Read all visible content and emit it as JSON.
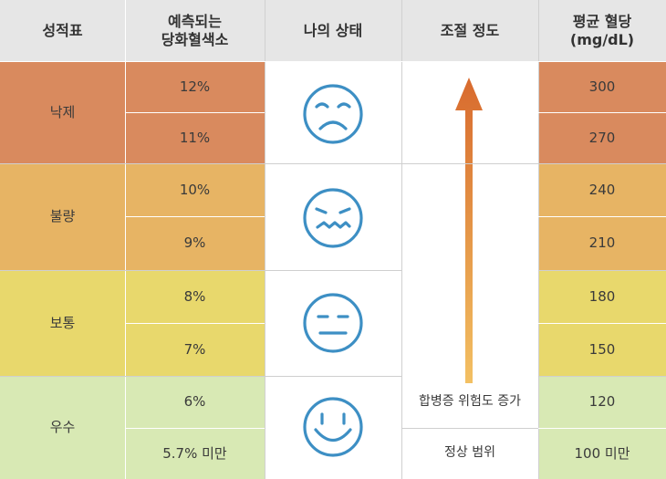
{
  "headers": {
    "grade": "성적표",
    "hba1c_line1": "예측되는",
    "hba1c_line2": "당화혈색소",
    "status": "나의 상태",
    "control": "조절 정도",
    "glucose_line1": "평균 혈당",
    "glucose_line2": "(mg/dL)"
  },
  "grades": [
    {
      "label": "낙제",
      "face": "sad-face-icon",
      "color": "#d98a5e",
      "rows": [
        {
          "hba1c": "12%",
          "glucose": "300"
        },
        {
          "hba1c": "11%",
          "glucose": "270"
        }
      ]
    },
    {
      "label": "불량",
      "face": "grimace-face-icon",
      "color": "#e7b464",
      "rows": [
        {
          "hba1c": "10%",
          "glucose": "240"
        },
        {
          "hba1c": "9%",
          "glucose": "210"
        }
      ]
    },
    {
      "label": "보통",
      "face": "neutral-face-icon",
      "color": "#e8d86c",
      "rows": [
        {
          "hba1c": "8%",
          "glucose": "180"
        },
        {
          "hba1c": "7%",
          "glucose": "150"
        }
      ]
    },
    {
      "label": "우수",
      "face": "smiling-face-icon",
      "color": "#d8e9b4",
      "rows": [
        {
          "hba1c": "6%",
          "glucose": "120"
        },
        {
          "hba1c": "5.7% 미만",
          "glucose": "100 미만"
        }
      ]
    }
  ],
  "control": {
    "risk_label": "합병증 위험도 증가",
    "normal_label": "정상 범위",
    "arrow_icon": "up-arrow-icon"
  },
  "colors": {
    "header_bg": "#e6e6e6",
    "fail": "#d98a5e",
    "poor": "#e7b464",
    "fair": "#e8d86c",
    "good": "#d8e9b4",
    "face_stroke": "#3d8fc4",
    "arrow_top": "#d86a2e",
    "arrow_bottom": "#f3c063"
  }
}
